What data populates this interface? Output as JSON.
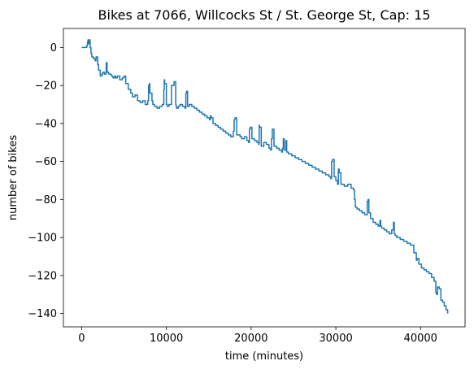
{
  "chart_data": {
    "type": "line",
    "title": "Bikes at 7066, Willcocks St / St. George St, Cap: 15",
    "xlabel": "time (minutes)",
    "ylabel": "number of bikes",
    "xlim": [
      -2150,
      45250
    ],
    "ylim": [
      -147,
      10
    ],
    "xticks": [
      0,
      10000,
      20000,
      30000,
      40000
    ],
    "yticks": [
      0,
      -20,
      -40,
      -60,
      -80,
      -100,
      -120,
      -140
    ],
    "grid": false,
    "line_color": "#1f77b4",
    "series": [
      {
        "x": [
          0,
          300,
          600,
          700,
          750,
          850,
          900,
          1000,
          1100,
          1200,
          1400,
          1600,
          1700,
          1900,
          2000,
          2200,
          2400,
          2500,
          2700,
          2900,
          3000,
          3200,
          3500,
          3700,
          3900,
          4000,
          4200,
          4500,
          4800,
          5000,
          5200,
          5500,
          5800,
          6000,
          6300,
          6600,
          6900,
          7200,
          7500,
          7800,
          7900,
          8000,
          8050,
          8300,
          8400,
          8600,
          8900,
          9200,
          9500,
          9700,
          9750,
          9800,
          10000,
          10100,
          10300,
          10600,
          10900,
          11100,
          11150,
          11200,
          11400,
          11600,
          11900,
          12200,
          12300,
          12400,
          12500,
          12700,
          13000,
          13300,
          13600,
          13900,
          14200,
          14500,
          14800,
          15100,
          15200,
          15300,
          15500,
          15800,
          16100,
          16400,
          16700,
          17000,
          17300,
          17600,
          17900,
          18000,
          18100,
          18300,
          18700,
          18900,
          19200,
          19500,
          19700,
          19800,
          19900,
          20100,
          20400,
          20700,
          20900,
          20950,
          21000,
          21200,
          21500,
          21800,
          22100,
          22300,
          22400,
          22500,
          22700,
          23000,
          23300,
          23600,
          23700,
          23800,
          23900,
          24100,
          24200,
          24400,
          24800,
          25200,
          25600,
          26000,
          26400,
          26800,
          27200,
          27600,
          28000,
          28400,
          28800,
          29200,
          29400,
          29500,
          29600,
          29800,
          30000,
          30200,
          30300,
          30400,
          30600,
          31000,
          31400,
          31800,
          32100,
          32200,
          32300,
          32500,
          32800,
          33100,
          33400,
          33700,
          33800,
          33900,
          34100,
          34400,
          34700,
          35000,
          35200,
          35300,
          35400,
          35700,
          36000,
          36300,
          36600,
          36800,
          36900,
          37000,
          37200,
          37600,
          38000,
          38400,
          38800,
          39200,
          39500,
          39600,
          39800,
          40100,
          40400,
          40700,
          41000,
          41300,
          41600,
          41800,
          41900,
          42000,
          42200,
          42400,
          42600,
          42800,
          43000,
          43200
        ],
        "y": [
          0,
          0,
          1,
          3,
          4,
          2,
          4,
          0,
          -3,
          -5,
          -6,
          -7,
          -5,
          -9,
          -12,
          -15,
          -14,
          -13,
          -14,
          -8,
          -13,
          -14,
          -15,
          -16,
          -15,
          -16,
          -15,
          -17,
          -16,
          -15,
          -19,
          -22,
          -24,
          -26,
          -25,
          -28,
          -29,
          -28,
          -30,
          -28,
          -20,
          -19,
          -24,
          -28,
          -30,
          -31,
          -32,
          -31,
          -30,
          -22,
          -17,
          -19,
          -30,
          -31,
          -30,
          -20,
          -18,
          -30,
          -31,
          -32,
          -31,
          -30,
          -31,
          -32,
          -24,
          -23,
          -31,
          -30,
          -31,
          -32,
          -33,
          -34,
          -35,
          -36,
          -37,
          -38,
          -36,
          -37,
          -40,
          -41,
          -42,
          -43,
          -44,
          -45,
          -46,
          -47,
          -44,
          -38,
          -37,
          -46,
          -47,
          -48,
          -47,
          -49,
          -50,
          -43,
          -42,
          -48,
          -49,
          -50,
          -51,
          -41,
          -42,
          -52,
          -50,
          -51,
          -53,
          -54,
          -48,
          -43,
          -52,
          -53,
          -54,
          -55,
          -53,
          -48,
          -54,
          -49,
          -55,
          -56,
          -57,
          -58,
          -59,
          -60,
          -61,
          -62,
          -63,
          -64,
          -65,
          -66,
          -67,
          -68,
          -69,
          -60,
          -59,
          -68,
          -70,
          -72,
          -64,
          -66,
          -72,
          -73,
          -72,
          -74,
          -75,
          -80,
          -84,
          -85,
          -86,
          -87,
          -88,
          -81,
          -80,
          -87,
          -90,
          -92,
          -93,
          -94,
          -91,
          -94,
          -95,
          -96,
          -97,
          -98,
          -96,
          -92,
          -98,
          -99,
          -100,
          -101,
          -102,
          -103,
          -104,
          -108,
          -112,
          -111,
          -114,
          -116,
          -117,
          -118,
          -119,
          -121,
          -123,
          -129,
          -130,
          -126,
          -127,
          -133,
          -134,
          -136,
          -138,
          -140
        ]
      }
    ]
  }
}
